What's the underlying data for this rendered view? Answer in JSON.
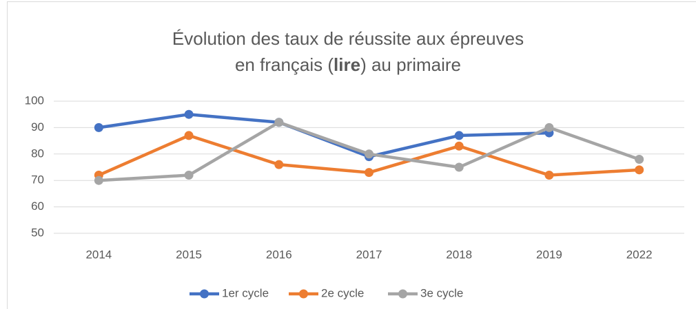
{
  "chart_data": {
    "type": "line",
    "title": [
      "Évolution des taux de réussite aux épreuves",
      "en français (",
      "lire",
      ") au primaire"
    ],
    "categories": [
      "2014",
      "2015",
      "2016",
      "2017",
      "2018",
      "2019",
      "2022"
    ],
    "series": [
      {
        "name": "1er cycle",
        "color": "#4472c4",
        "values": [
          90,
          95,
          92,
          79,
          87,
          88,
          null
        ]
      },
      {
        "name": "2e cycle",
        "color": "#ed7d31",
        "values": [
          72,
          87,
          76,
          73,
          83,
          72,
          74
        ]
      },
      {
        "name": "3e cycle",
        "color": "#a5a5a5",
        "values": [
          70,
          72,
          92,
          80,
          75,
          90,
          78
        ]
      }
    ],
    "ylim": [
      50,
      100
    ],
    "yticks": [
      50,
      60,
      70,
      80,
      90,
      100
    ],
    "grid": true,
    "legend": "bottom"
  }
}
